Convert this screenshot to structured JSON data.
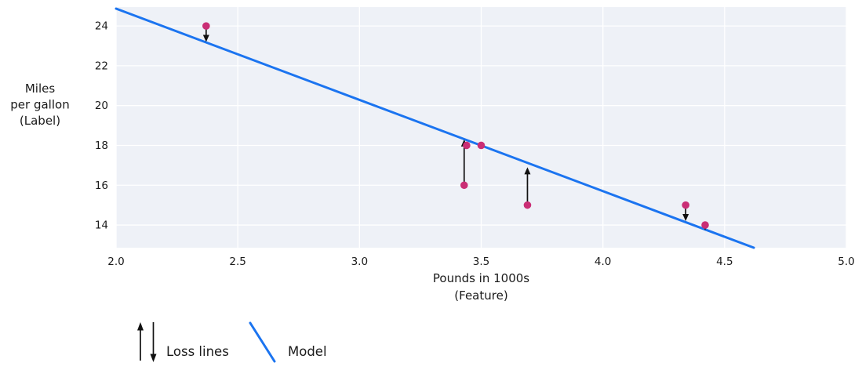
{
  "chart_data": {
    "type": "scatter",
    "title": "",
    "xlabel_lines": [
      "Pounds in 1000s",
      "(Feature)"
    ],
    "ylabel_lines": [
      "Miles",
      "per gallon",
      "(Label)"
    ],
    "xlim": [
      2.0,
      5.0
    ],
    "ylim": [
      12.86,
      24.95
    ],
    "grid": true,
    "x_ticks": {
      "values": [
        2.0,
        2.5,
        3.0,
        3.5,
        4.0,
        4.5,
        5.0
      ],
      "labels": [
        "2.0",
        "2.5",
        "3.0",
        "3.5",
        "4.0",
        "4.5",
        "5.0"
      ]
    },
    "y_ticks": {
      "values": [
        14,
        16,
        18,
        20,
        22,
        24
      ],
      "labels": [
        "14",
        "16",
        "18",
        "20",
        "22",
        "24"
      ]
    },
    "points": [
      {
        "x": 2.37,
        "y": 24
      },
      {
        "x": 3.44,
        "y": 18
      },
      {
        "x": 3.5,
        "y": 18
      },
      {
        "x": 3.43,
        "y": 16
      },
      {
        "x": 3.69,
        "y": 15
      },
      {
        "x": 4.34,
        "y": 15
      },
      {
        "x": 4.42,
        "y": 14
      }
    ],
    "model_line": {
      "x1": 2.0,
      "y1": 24.87,
      "x2": 4.62,
      "y2": 12.86
    },
    "loss_lines": [
      {
        "x": 2.37,
        "from": 24,
        "to": 23.2,
        "direction": "down"
      },
      {
        "x": 3.43,
        "from": 16,
        "to": 18.3,
        "direction": "up"
      },
      {
        "x": 3.69,
        "from": 15,
        "to": 16.9,
        "direction": "up"
      },
      {
        "x": 4.34,
        "from": 15,
        "to": 14.2,
        "direction": "down"
      },
      {
        "x": 4.42,
        "from": 14,
        "to": 13.73,
        "direction": "down"
      }
    ],
    "legend": {
      "items": [
        {
          "label": "Loss lines",
          "symbol": "loss-arrows-icon"
        },
        {
          "label": "Model",
          "symbol": "model-line-icon"
        }
      ]
    },
    "colors": {
      "point": "#ca2e75",
      "model_line": "#1b74f0",
      "loss_arrow": "#111111",
      "plot_bg": "#eef1f7",
      "grid": "#ffffff",
      "text": "#1a1a1a"
    }
  }
}
